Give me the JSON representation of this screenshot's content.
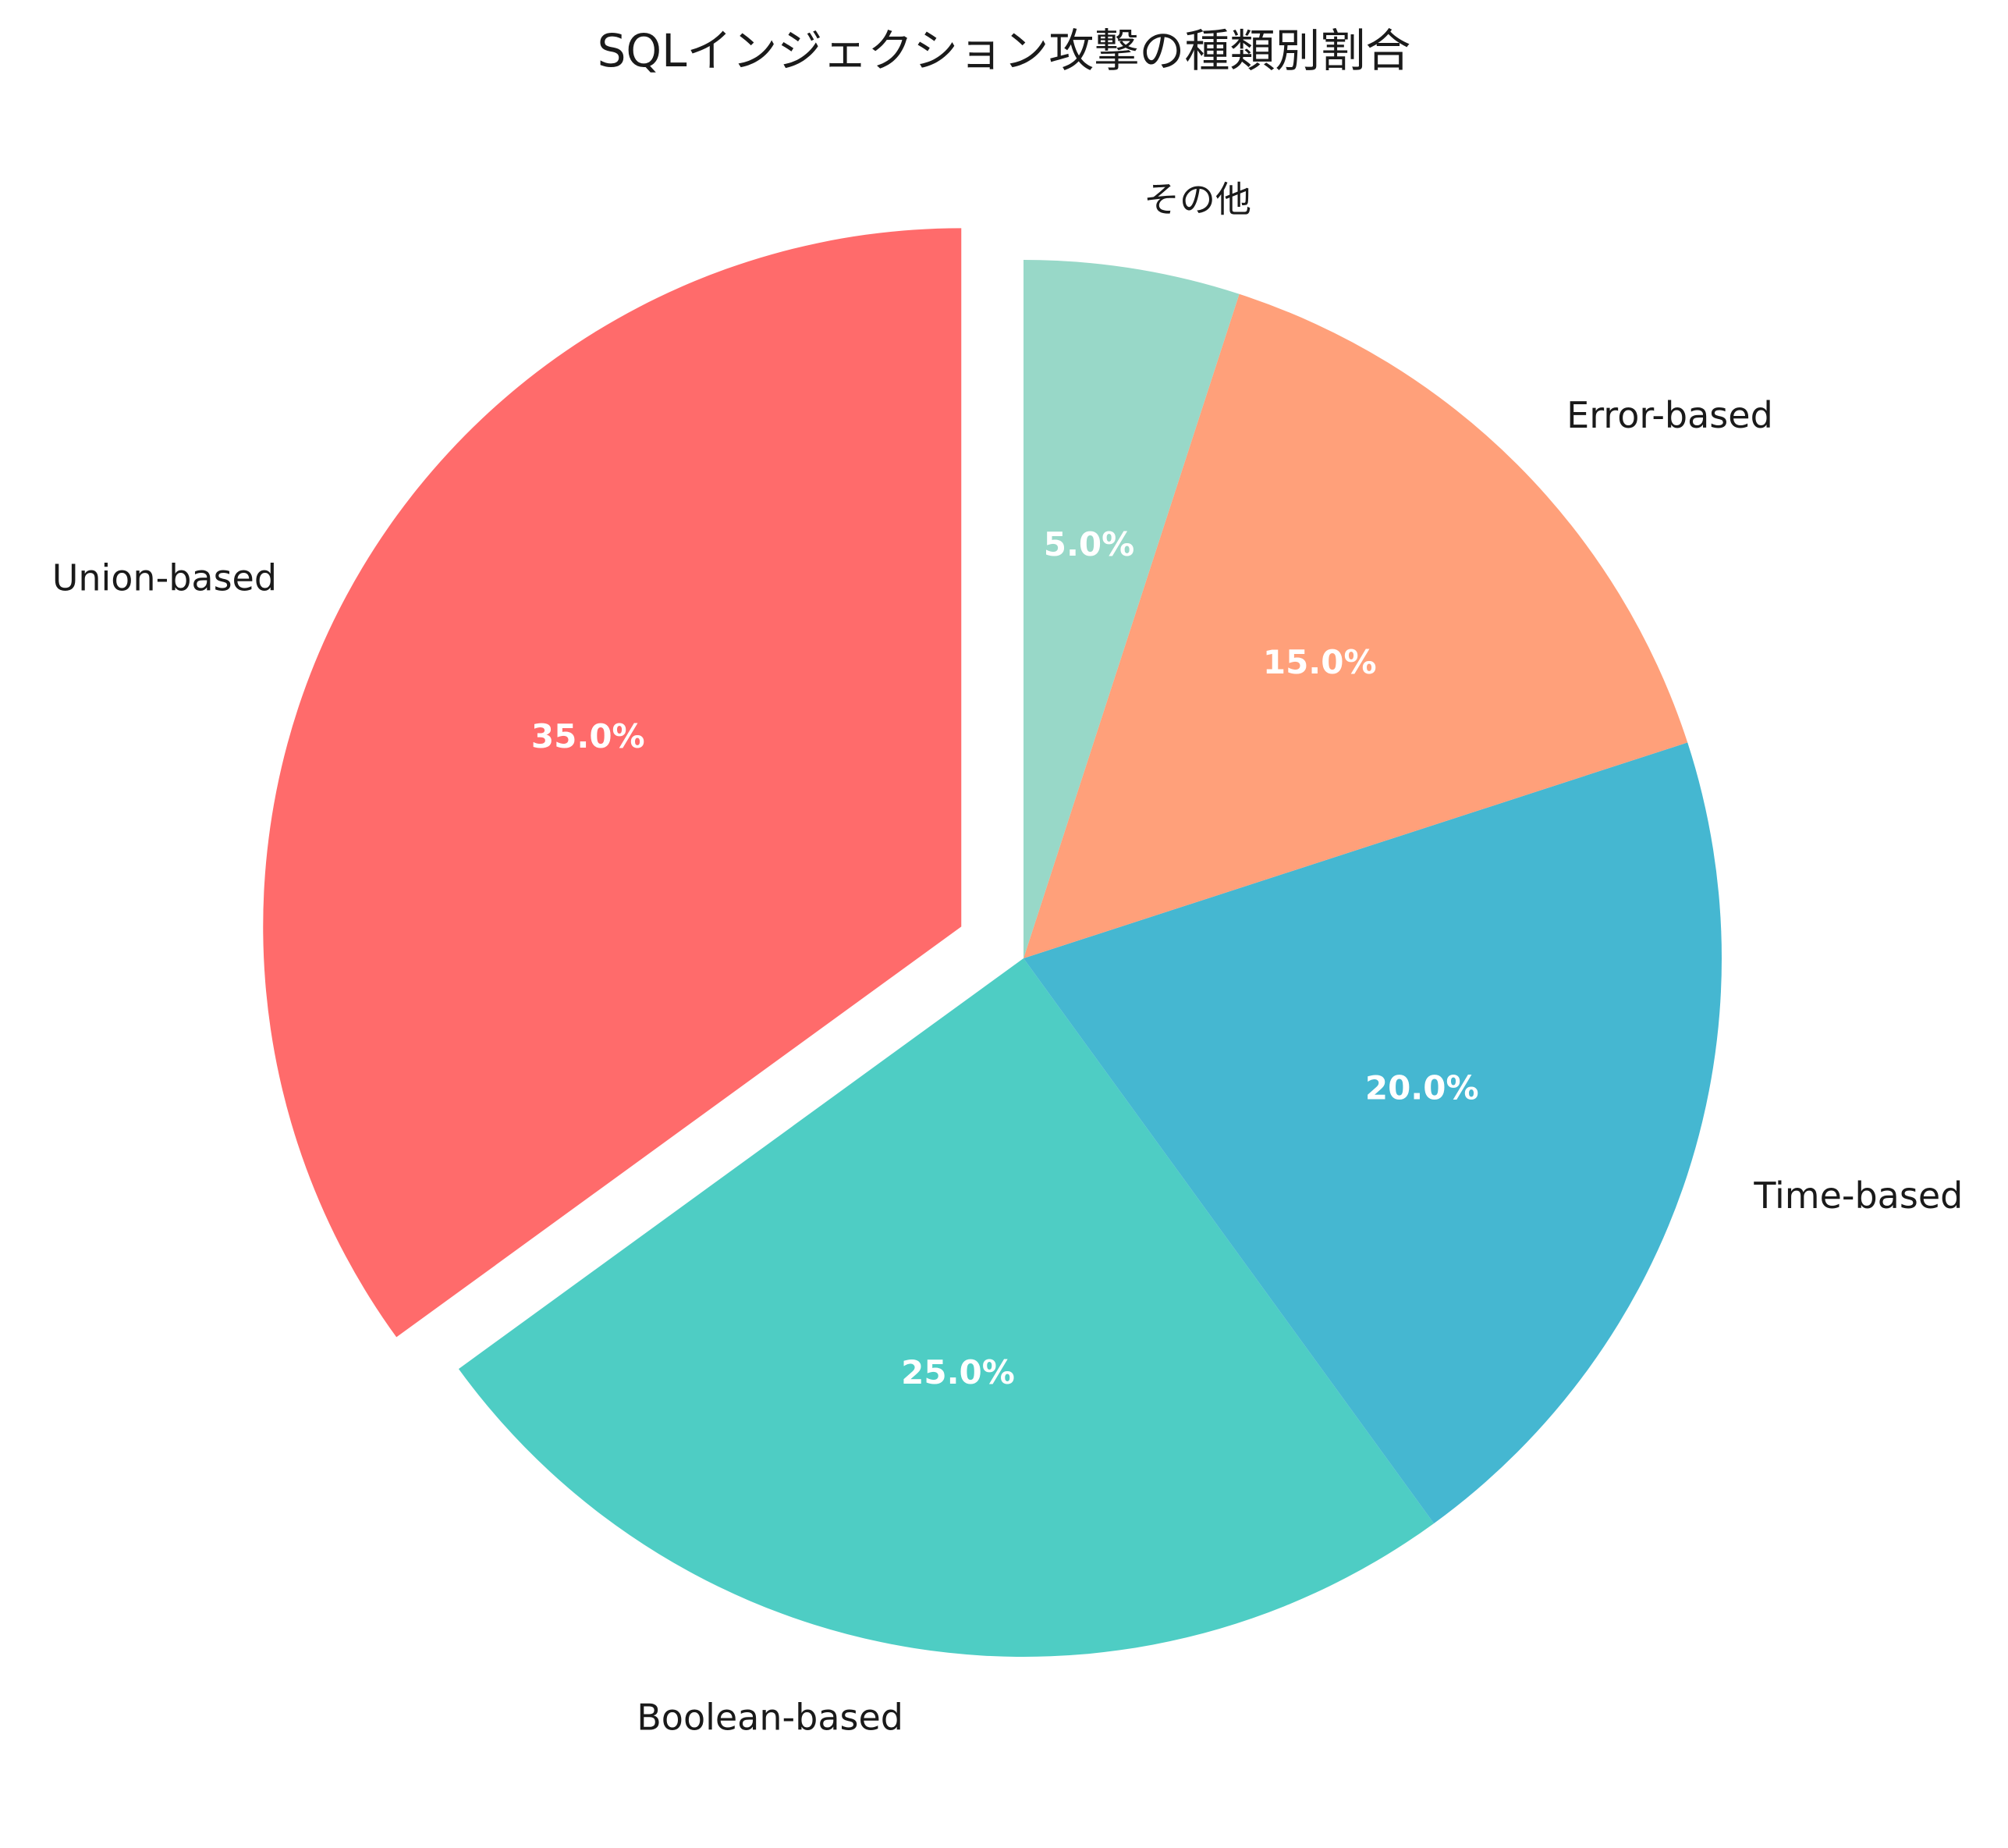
{
  "chart_data": {
    "type": "pie",
    "title": "SQLインジェクション攻撃の種類別割合",
    "slices": [
      {
        "label": "Union-based",
        "value": 35,
        "pct_label": "35.0%",
        "color": "#FF6B6B",
        "exploded": true
      },
      {
        "label": "Boolean-based",
        "value": 25,
        "pct_label": "25.0%",
        "color": "#4ECDC4",
        "exploded": false
      },
      {
        "label": "Time-based",
        "value": 20,
        "pct_label": "20.0%",
        "color": "#45B7D1",
        "exploded": false
      },
      {
        "label": "Error-based",
        "value": 15,
        "pct_label": "15.0%",
        "color": "#FFA07A",
        "exploded": false
      },
      {
        "label": "その他",
        "value": 5,
        "pct_label": "5.0%",
        "color": "#98D8C8",
        "exploded": false
      }
    ],
    "start_angle_deg": 90,
    "direction": "counterclockwise",
    "legend": "none"
  }
}
